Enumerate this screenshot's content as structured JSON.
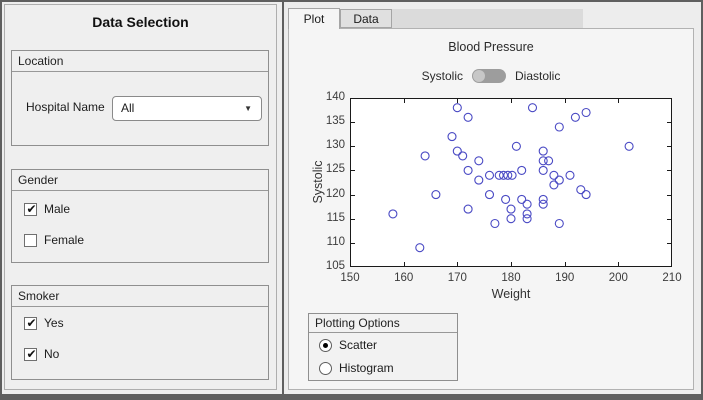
{
  "left_panel": {
    "title": "Data Selection",
    "location": {
      "title": "Location",
      "field_label": "Hospital Name",
      "dropdown_value": "All"
    },
    "gender": {
      "title": "Gender",
      "options": [
        {
          "label": "Male",
          "checked": true
        },
        {
          "label": "Female",
          "checked": false
        }
      ]
    },
    "smoker": {
      "title": "Smoker",
      "options": [
        {
          "label": "Yes",
          "checked": true
        },
        {
          "label": "No",
          "checked": true
        }
      ]
    }
  },
  "tabs": [
    {
      "label": "Plot",
      "active": true
    },
    {
      "label": "Data",
      "active": false
    }
  ],
  "toggle": {
    "left_label": "Systolic",
    "right_label": "Diastolic",
    "selected": "Systolic"
  },
  "plotting_options": {
    "title": "Plotting Options",
    "options": [
      {
        "label": "Scatter",
        "selected": true
      },
      {
        "label": "Histogram",
        "selected": false
      }
    ]
  },
  "chart_data": {
    "type": "scatter",
    "title": "Blood Pressure",
    "xlabel": "Weight",
    "ylabel": "Systolic",
    "xlim": [
      150,
      210
    ],
    "ylim": [
      105,
      140
    ],
    "xticks": [
      150,
      160,
      170,
      180,
      190,
      200,
      210
    ],
    "yticks": [
      105,
      110,
      115,
      120,
      125,
      130,
      135,
      140
    ],
    "marker": "open-circle",
    "marker_color": "#4a4ac4",
    "points": [
      [
        158,
        116
      ],
      [
        163,
        109
      ],
      [
        164,
        128
      ],
      [
        166,
        120
      ],
      [
        169,
        132
      ],
      [
        170,
        138
      ],
      [
        170,
        129
      ],
      [
        171,
        128
      ],
      [
        172,
        136
      ],
      [
        172,
        125
      ],
      [
        172,
        117
      ],
      [
        174,
        127
      ],
      [
        174,
        123
      ],
      [
        176,
        124
      ],
      [
        176,
        120
      ],
      [
        177,
        114
      ],
      [
        177.8,
        124
      ],
      [
        178.6,
        124
      ],
      [
        179.4,
        124
      ],
      [
        180.2,
        124
      ],
      [
        179,
        119
      ],
      [
        180,
        117
      ],
      [
        180,
        115
      ],
      [
        181,
        130
      ],
      [
        182,
        125
      ],
      [
        182,
        119
      ],
      [
        183,
        118
      ],
      [
        183,
        116
      ],
      [
        183,
        115
      ],
      [
        184,
        138
      ],
      [
        186,
        129
      ],
      [
        186,
        127
      ],
      [
        187,
        127
      ],
      [
        186,
        125
      ],
      [
        186,
        119
      ],
      [
        186,
        118
      ],
      [
        188,
        124
      ],
      [
        189,
        134
      ],
      [
        189,
        123
      ],
      [
        188,
        122
      ],
      [
        189,
        114
      ],
      [
        191,
        124
      ],
      [
        192,
        136
      ],
      [
        193,
        121
      ],
      [
        194,
        137
      ],
      [
        194,
        120
      ],
      [
        202,
        130
      ]
    ]
  }
}
